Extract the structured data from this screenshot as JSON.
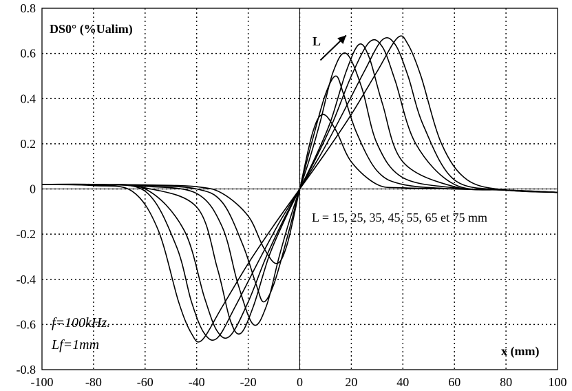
{
  "chart_data": {
    "type": "line",
    "title": "DS0° (%Ualim)",
    "xlabel": "x (mm)",
    "ylabel": "",
    "xlim": [
      -100,
      100
    ],
    "ylim": [
      -0.8,
      0.8
    ],
    "grid": true,
    "x_ticks": [
      "-100",
      "-80",
      "-60",
      "-40",
      "-20",
      "0",
      "20",
      "40",
      "60",
      "80",
      "100"
    ],
    "y_ticks": [
      "0.8",
      "0.6",
      "0.4",
      "0.2",
      "0",
      "-0.2",
      "-0.4",
      "-0.6",
      "-0.8"
    ],
    "annotations": {
      "arrow_label": "L",
      "lengths_note": "L = 15, 25, 35, 45, 55, 65 et 75 mm",
      "frequency": "f=100kHz.",
      "lf": "Lf=1mm"
    },
    "series": [
      {
        "x": [
          -100,
          -80,
          -60,
          -40,
          -30,
          -20,
          -14,
          -9,
          -5,
          0,
          5,
          9,
          14,
          20,
          30,
          40,
          60,
          80,
          100
        ],
        "values": [
          0.02,
          0.02,
          0.018,
          0.01,
          -0.02,
          -0.12,
          -0.26,
          -0.33,
          -0.25,
          0,
          0.25,
          0.33,
          0.26,
          0.12,
          0.02,
          0.005,
          0,
          -0.005,
          -0.015
        ]
      },
      {
        "x": [
          -100,
          -80,
          -60,
          -40,
          -30,
          -22,
          -17,
          -14,
          -10,
          -5,
          0,
          5,
          10,
          14,
          17,
          22,
          30,
          40,
          60,
          80,
          100
        ],
        "values": [
          0.02,
          0.02,
          0.016,
          0.0,
          -0.06,
          -0.25,
          -0.42,
          -0.5,
          -0.42,
          -0.22,
          0,
          0.22,
          0.42,
          0.5,
          0.42,
          0.25,
          0.08,
          0.02,
          0.0,
          -0.005,
          -0.015
        ]
      },
      {
        "x": [
          -100,
          -80,
          -60,
          -40,
          -30,
          -24,
          -18,
          -13,
          -8,
          -4,
          0,
          4,
          8,
          13,
          18,
          24,
          30,
          40,
          60,
          80,
          100
        ],
        "values": [
          0.02,
          0.02,
          0.012,
          -0.02,
          -0.17,
          -0.42,
          -0.6,
          -0.52,
          -0.3,
          -0.14,
          0,
          0.14,
          0.3,
          0.52,
          0.6,
          0.45,
          0.2,
          0.05,
          0.005,
          -0.005,
          -0.015
        ]
      },
      {
        "x": [
          -100,
          -80,
          -60,
          -40,
          -32,
          -27,
          -23,
          -18,
          -12,
          -6,
          0,
          6,
          12,
          18,
          23,
          27,
          32,
          40,
          60,
          80,
          100
        ],
        "values": [
          0.02,
          0.02,
          0.005,
          -0.08,
          -0.35,
          -0.58,
          -0.64,
          -0.52,
          -0.3,
          -0.14,
          0,
          0.14,
          0.3,
          0.52,
          0.64,
          0.58,
          0.38,
          0.12,
          0.01,
          -0.005,
          -0.015
        ]
      },
      {
        "x": [
          -100,
          -80,
          -60,
          -45,
          -37,
          -32,
          -27,
          -20,
          -13,
          -6,
          0,
          6,
          13,
          20,
          27,
          32,
          37,
          45,
          60,
          80,
          100
        ],
        "values": [
          0.02,
          0.018,
          0.0,
          -0.18,
          -0.48,
          -0.63,
          -0.65,
          -0.5,
          -0.3,
          -0.13,
          0,
          0.13,
          0.3,
          0.5,
          0.65,
          0.63,
          0.48,
          0.2,
          0.02,
          -0.005,
          -0.015
        ]
      },
      {
        "x": [
          -100,
          -80,
          -60,
          -48,
          -42,
          -37,
          -32,
          -25,
          -16,
          -8,
          0,
          8,
          16,
          25,
          32,
          37,
          42,
          48,
          60,
          80,
          100
        ],
        "values": [
          0.02,
          0.016,
          -0.01,
          -0.25,
          -0.5,
          -0.64,
          -0.66,
          -0.52,
          -0.32,
          -0.15,
          0,
          0.15,
          0.32,
          0.52,
          0.66,
          0.64,
          0.5,
          0.28,
          0.04,
          -0.005,
          -0.015
        ]
      },
      {
        "x": [
          -100,
          -80,
          -65,
          -55,
          -47,
          -42,
          -38,
          -30,
          -20,
          -10,
          0,
          10,
          20,
          30,
          38,
          42,
          47,
          55,
          65,
          80,
          100
        ],
        "values": [
          0.02,
          0.015,
          -0.01,
          -0.18,
          -0.5,
          -0.64,
          -0.67,
          -0.52,
          -0.33,
          -0.16,
          0,
          0.16,
          0.33,
          0.52,
          0.67,
          0.64,
          0.5,
          0.2,
          0.04,
          -0.005,
          -0.015
        ]
      }
    ],
    "arrow": {
      "from": [
        8,
        0.57
      ],
      "to": [
        18,
        0.68
      ]
    }
  }
}
